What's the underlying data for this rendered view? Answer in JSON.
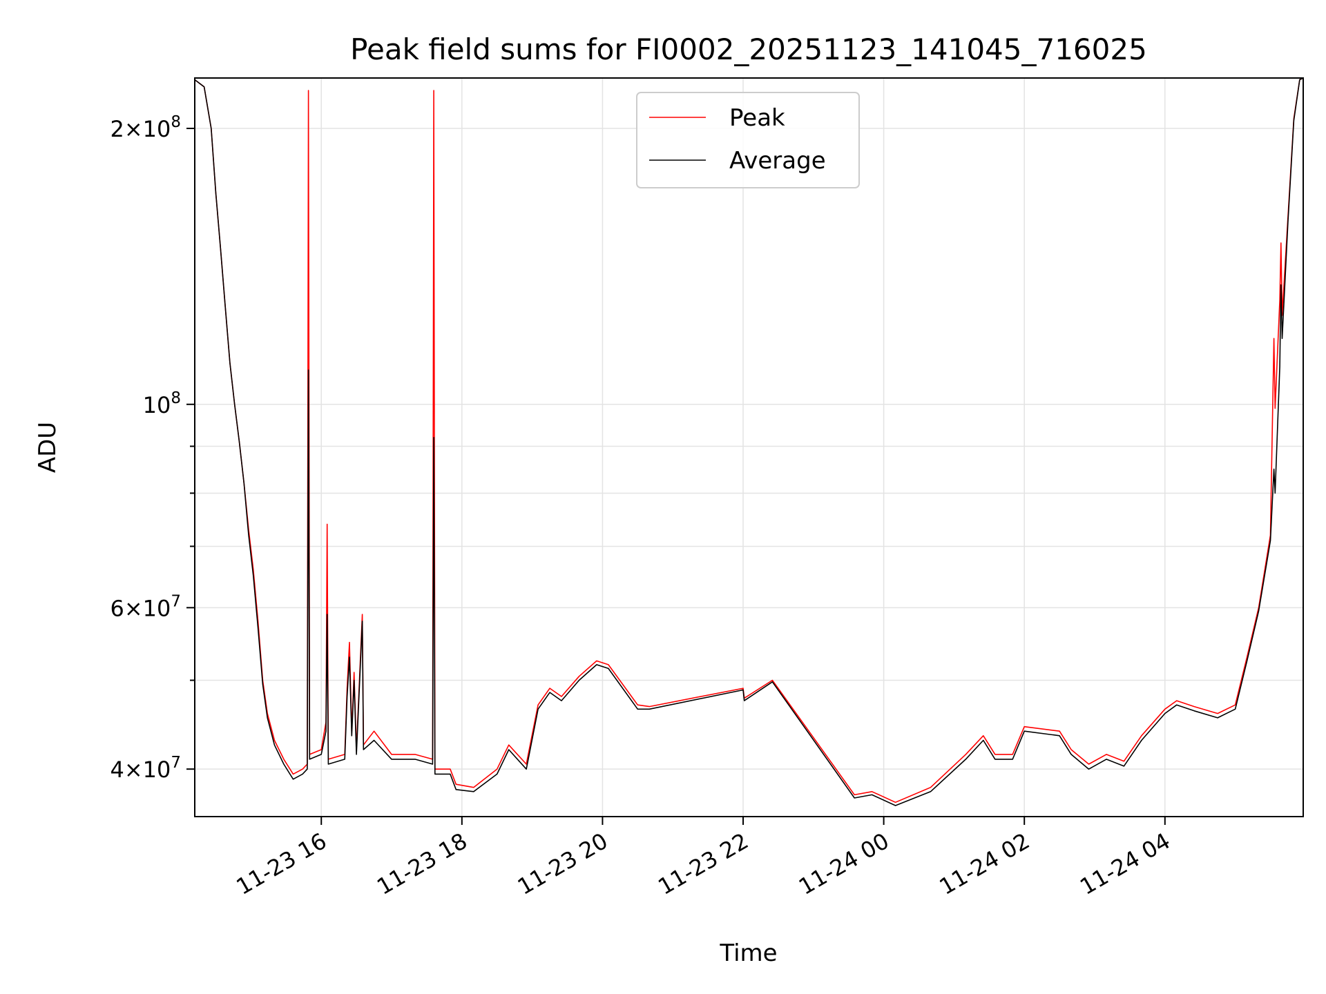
{
  "chart_data": {
    "type": "line",
    "title": "Peak field sums for FI0002_20251123_141045_716025",
    "xlabel": "Time",
    "ylabel": "ADU",
    "yscale": "log",
    "ylim": [
      35500000,
      227000000
    ],
    "xlim": [
      "2025-11-23 14:12",
      "2025-11-24 05:58"
    ],
    "grid": true,
    "legend_position": "upper center",
    "x_ticks": [
      {
        "t": "2025-11-23 16:00",
        "label": "11-23 16"
      },
      {
        "t": "2025-11-23 18:00",
        "label": "11-23 18"
      },
      {
        "t": "2025-11-23 20:00",
        "label": "11-23 20"
      },
      {
        "t": "2025-11-23 22:00",
        "label": "11-23 22"
      },
      {
        "t": "2025-11-24 00:00",
        "label": "11-24 00"
      },
      {
        "t": "2025-11-24 02:00",
        "label": "11-24 02"
      },
      {
        "t": "2025-11-24 04:00",
        "label": "11-24 04"
      }
    ],
    "y_major_ticks": [
      {
        "value": 40000000,
        "mantissa": "4",
        "exponent": "7"
      },
      {
        "value": 60000000,
        "mantissa": "6",
        "exponent": "7"
      },
      {
        "value": 100000000,
        "mantissa": "",
        "exponent": "8"
      },
      {
        "value": 200000000,
        "mantissa": "2",
        "exponent": "8"
      }
    ],
    "y_minor_ticks": [
      50000000,
      70000000,
      80000000,
      90000000
    ],
    "series": [
      {
        "name": "Peak",
        "color": "#ff0000",
        "points": [
          [
            "2025-11-23 14:12",
            226000000
          ],
          [
            "2025-11-23 14:20",
            222000000
          ],
          [
            "2025-11-23 14:26",
            200000000
          ],
          [
            "2025-11-23 14:30",
            170000000
          ],
          [
            "2025-11-23 14:34",
            148000000
          ],
          [
            "2025-11-23 14:38",
            128000000
          ],
          [
            "2025-11-23 14:42",
            111000000
          ],
          [
            "2025-11-23 14:46",
            100000000
          ],
          [
            "2025-11-23 14:50",
            91000000
          ],
          [
            "2025-11-23 14:54",
            82000000
          ],
          [
            "2025-11-23 14:58",
            73000000
          ],
          [
            "2025-11-23 15:02",
            66000000
          ],
          [
            "2025-11-23 15:06",
            58000000
          ],
          [
            "2025-11-23 15:10",
            50000000
          ],
          [
            "2025-11-23 15:14",
            46000000
          ],
          [
            "2025-11-23 15:20",
            43000000
          ],
          [
            "2025-11-23 15:28",
            41000000
          ],
          [
            "2025-11-23 15:36",
            39500000
          ],
          [
            "2025-11-23 15:44",
            40000000
          ],
          [
            "2025-11-23 15:48",
            40500000
          ],
          [
            "2025-11-23 15:49",
            220000000
          ],
          [
            "2025-11-23 15:50",
            41500000
          ],
          [
            "2025-11-23 16:00",
            42000000
          ],
          [
            "2025-11-23 16:04",
            45000000
          ],
          [
            "2025-11-23 16:05",
            74000000
          ],
          [
            "2025-11-23 16:06",
            41000000
          ],
          [
            "2025-11-23 16:20",
            41500000
          ],
          [
            "2025-11-23 16:22",
            49000000
          ],
          [
            "2025-11-23 16:24",
            55000000
          ],
          [
            "2025-11-23 16:26",
            44000000
          ],
          [
            "2025-11-23 16:28",
            51000000
          ],
          [
            "2025-11-23 16:30",
            42000000
          ],
          [
            "2025-11-23 16:35",
            59000000
          ],
          [
            "2025-11-23 16:36",
            42500000
          ],
          [
            "2025-11-23 16:45",
            44000000
          ],
          [
            "2025-11-23 17:00",
            41500000
          ],
          [
            "2025-11-23 17:20",
            41500000
          ],
          [
            "2025-11-23 17:35",
            41000000
          ],
          [
            "2025-11-23 17:36",
            220000000
          ],
          [
            "2025-11-23 17:37",
            40000000
          ],
          [
            "2025-11-23 17:50",
            40000000
          ],
          [
            "2025-11-23 17:55",
            38500000
          ],
          [
            "2025-11-23 18:10",
            38200000
          ],
          [
            "2025-11-23 18:30",
            40000000
          ],
          [
            "2025-11-23 18:40",
            42500000
          ],
          [
            "2025-11-23 18:55",
            40500000
          ],
          [
            "2025-11-23 19:05",
            47000000
          ],
          [
            "2025-11-23 19:15",
            49000000
          ],
          [
            "2025-11-23 19:25",
            48000000
          ],
          [
            "2025-11-23 19:40",
            50500000
          ],
          [
            "2025-11-23 19:55",
            52500000
          ],
          [
            "2025-11-23 20:05",
            52000000
          ],
          [
            "2025-11-23 20:30",
            47000000
          ],
          [
            "2025-11-23 20:40",
            46800000
          ],
          [
            "2025-11-23 22:00",
            49000000
          ],
          [
            "2025-11-23 22:01",
            47800000
          ],
          [
            "2025-11-23 22:25",
            50000000
          ],
          [
            "2025-11-23 23:35",
            37500000
          ],
          [
            "2025-11-23 23:50",
            37800000
          ],
          [
            "2025-11-24 00:10",
            36800000
          ],
          [
            "2025-11-24 00:40",
            38200000
          ],
          [
            "2025-11-24 01:10",
            41500000
          ],
          [
            "2025-11-24 01:25",
            43500000
          ],
          [
            "2025-11-24 01:35",
            41500000
          ],
          [
            "2025-11-24 01:50",
            41500000
          ],
          [
            "2025-11-24 02:00",
            44500000
          ],
          [
            "2025-11-24 02:30",
            44000000
          ],
          [
            "2025-11-24 02:40",
            42000000
          ],
          [
            "2025-11-24 02:55",
            40500000
          ],
          [
            "2025-11-24 03:10",
            41500000
          ],
          [
            "2025-11-24 03:25",
            40800000
          ],
          [
            "2025-11-24 03:40",
            43500000
          ],
          [
            "2025-11-24 04:00",
            46500000
          ],
          [
            "2025-11-24 04:10",
            47500000
          ],
          [
            "2025-11-24 04:25",
            46800000
          ],
          [
            "2025-11-24 04:45",
            46000000
          ],
          [
            "2025-11-24 05:00",
            47000000
          ],
          [
            "2025-11-24 05:10",
            53000000
          ],
          [
            "2025-11-24 05:20",
            60000000
          ],
          [
            "2025-11-24 05:30",
            72000000
          ],
          [
            "2025-11-24 05:33",
            118000000
          ],
          [
            "2025-11-24 05:34",
            99000000
          ],
          [
            "2025-11-24 05:38",
            130000000
          ],
          [
            "2025-11-24 05:39",
            150000000
          ],
          [
            "2025-11-24 05:40",
            125000000
          ],
          [
            "2025-11-24 05:45",
            160000000
          ],
          [
            "2025-11-24 05:50",
            205000000
          ],
          [
            "2025-11-24 05:55",
            226000000
          ],
          [
            "2025-11-24 05:58",
            227000000
          ]
        ]
      },
      {
        "name": "Average",
        "color": "#000000",
        "points": [
          [
            "2025-11-23 14:12",
            226000000
          ],
          [
            "2025-11-23 14:20",
            222000000
          ],
          [
            "2025-11-23 14:26",
            200000000
          ],
          [
            "2025-11-23 14:30",
            170000000
          ],
          [
            "2025-11-23 14:34",
            148000000
          ],
          [
            "2025-11-23 14:38",
            128000000
          ],
          [
            "2025-11-23 14:42",
            111000000
          ],
          [
            "2025-11-23 14:46",
            100000000
          ],
          [
            "2025-11-23 14:50",
            91000000
          ],
          [
            "2025-11-23 14:54",
            82000000
          ],
          [
            "2025-11-23 14:58",
            72000000
          ],
          [
            "2025-11-23 15:02",
            65000000
          ],
          [
            "2025-11-23 15:06",
            57000000
          ],
          [
            "2025-11-23 15:10",
            49500000
          ],
          [
            "2025-11-23 15:14",
            45500000
          ],
          [
            "2025-11-23 15:20",
            42500000
          ],
          [
            "2025-11-23 15:28",
            40500000
          ],
          [
            "2025-11-23 15:36",
            39000000
          ],
          [
            "2025-11-23 15:44",
            39500000
          ],
          [
            "2025-11-23 15:48",
            40000000
          ],
          [
            "2025-11-23 15:49",
            109000000
          ],
          [
            "2025-11-23 15:50",
            41000000
          ],
          [
            "2025-11-23 16:00",
            41500000
          ],
          [
            "2025-11-23 16:04",
            44000000
          ],
          [
            "2025-11-23 16:05",
            59000000
          ],
          [
            "2025-11-23 16:06",
            40500000
          ],
          [
            "2025-11-23 16:20",
            41000000
          ],
          [
            "2025-11-23 16:22",
            48000000
          ],
          [
            "2025-11-23 16:24",
            53000000
          ],
          [
            "2025-11-23 16:26",
            43500000
          ],
          [
            "2025-11-23 16:28",
            50000000
          ],
          [
            "2025-11-23 16:30",
            41500000
          ],
          [
            "2025-11-23 16:35",
            58000000
          ],
          [
            "2025-11-23 16:36",
            42000000
          ],
          [
            "2025-11-23 16:45",
            43000000
          ],
          [
            "2025-11-23 17:00",
            41000000
          ],
          [
            "2025-11-23 17:20",
            41000000
          ],
          [
            "2025-11-23 17:35",
            40500000
          ],
          [
            "2025-11-23 17:36",
            92000000
          ],
          [
            "2025-11-23 17:37",
            39500000
          ],
          [
            "2025-11-23 17:50",
            39500000
          ],
          [
            "2025-11-23 17:55",
            38000000
          ],
          [
            "2025-11-23 18:10",
            37800000
          ],
          [
            "2025-11-23 18:30",
            39500000
          ],
          [
            "2025-11-23 18:40",
            42000000
          ],
          [
            "2025-11-23 18:55",
            40000000
          ],
          [
            "2025-11-23 19:05",
            46500000
          ],
          [
            "2025-11-23 19:15",
            48500000
          ],
          [
            "2025-11-23 19:25",
            47500000
          ],
          [
            "2025-11-23 19:40",
            50000000
          ],
          [
            "2025-11-23 19:55",
            52000000
          ],
          [
            "2025-11-23 20:05",
            51500000
          ],
          [
            "2025-11-23 20:30",
            46500000
          ],
          [
            "2025-11-23 20:40",
            46500000
          ],
          [
            "2025-11-23 22:00",
            48800000
          ],
          [
            "2025-11-23 22:01",
            47500000
          ],
          [
            "2025-11-23 22:25",
            49800000
          ],
          [
            "2025-11-23 23:35",
            37200000
          ],
          [
            "2025-11-23 23:50",
            37500000
          ],
          [
            "2025-11-24 00:10",
            36500000
          ],
          [
            "2025-11-24 00:40",
            37800000
          ],
          [
            "2025-11-24 01:10",
            41000000
          ],
          [
            "2025-11-24 01:25",
            43000000
          ],
          [
            "2025-11-24 01:35",
            41000000
          ],
          [
            "2025-11-24 01:50",
            41000000
          ],
          [
            "2025-11-24 02:00",
            44000000
          ],
          [
            "2025-11-24 02:30",
            43500000
          ],
          [
            "2025-11-24 02:40",
            41500000
          ],
          [
            "2025-11-24 02:55",
            40000000
          ],
          [
            "2025-11-24 03:10",
            41000000
          ],
          [
            "2025-11-24 03:25",
            40300000
          ],
          [
            "2025-11-24 03:40",
            43000000
          ],
          [
            "2025-11-24 04:00",
            46000000
          ],
          [
            "2025-11-24 04:10",
            47000000
          ],
          [
            "2025-11-24 04:25",
            46300000
          ],
          [
            "2025-11-24 04:45",
            45500000
          ],
          [
            "2025-11-24 05:00",
            46500000
          ],
          [
            "2025-11-24 05:10",
            52500000
          ],
          [
            "2025-11-24 05:20",
            59500000
          ],
          [
            "2025-11-24 05:30",
            71000000
          ],
          [
            "2025-11-24 05:33",
            85000000
          ],
          [
            "2025-11-24 05:34",
            80000000
          ],
          [
            "2025-11-24 05:38",
            110000000
          ],
          [
            "2025-11-24 05:39",
            135000000
          ],
          [
            "2025-11-24 05:40",
            118000000
          ],
          [
            "2025-11-24 05:45",
            158000000
          ],
          [
            "2025-11-24 05:50",
            204000000
          ],
          [
            "2025-11-24 05:55",
            226000000
          ],
          [
            "2025-11-24 05:58",
            227000000
          ]
        ]
      }
    ]
  }
}
